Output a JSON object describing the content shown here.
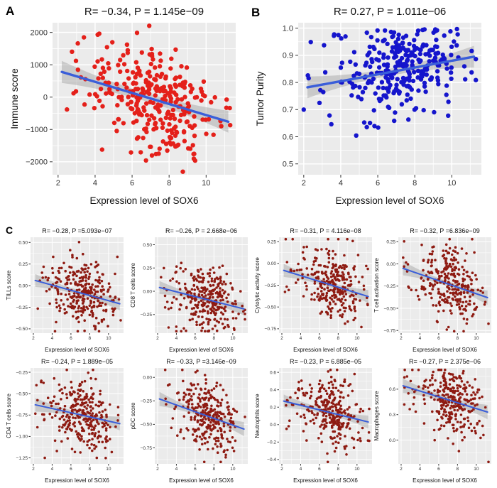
{
  "figure": {
    "labels": {
      "a": "A",
      "b": "B",
      "c": "C"
    }
  },
  "style": {
    "panel_bg": "#ebebeb",
    "grid_color": "#ffffff",
    "trend_color": "#3a5ed9",
    "band_color": "#9a9a9a",
    "axis_text_color": "#303030",
    "title_color": "#111111",
    "red_dot": "#e4201a",
    "blue_dot": "#1515cc",
    "darkred_dot": "#8e1b12"
  },
  "chart_data": [
    {
      "id": "A",
      "type": "scatter",
      "size": "large",
      "title": "R= −0.34, P = 1.145e−09",
      "r": -0.34,
      "p": "1.145e-09",
      "xlabel": "Expression level of SOX6",
      "ylabel": "Immune score",
      "xlim": [
        1.7,
        11.6
      ],
      "ylim": [
        -2400,
        2300
      ],
      "xticks": [
        2,
        4,
        6,
        8,
        10
      ],
      "xtick_labels": [
        "2",
        "4",
        "6",
        "8",
        "10"
      ],
      "yticks": [
        2000,
        1000,
        0,
        -1000,
        -2000
      ],
      "ytick_labels": [
        "2000",
        "1000",
        "0",
        "−1000",
        "−2000"
      ],
      "dot_color": "#e4201a",
      "n": 310,
      "seed": 101,
      "trend": {
        "x1": 2.2,
        "y1": 780,
        "x2": 11.2,
        "y2": -760
      },
      "noise_sd": 850,
      "band": {
        "mid": 130,
        "end": 340
      }
    },
    {
      "id": "B",
      "type": "scatter",
      "size": "large",
      "title": "R= 0.27, P = 1.011e−06",
      "r": 0.27,
      "p": "1.011e-06",
      "xlabel": "Expression level of SOX6",
      "ylabel": "Tumor Purity",
      "xlim": [
        1.7,
        11.6
      ],
      "ylim": [
        0.46,
        1.02
      ],
      "xticks": [
        2,
        4,
        6,
        8,
        10
      ],
      "xtick_labels": [
        "2",
        "4",
        "6",
        "8",
        "10"
      ],
      "yticks": [
        1.0,
        0.9,
        0.8,
        0.7,
        0.6,
        0.5
      ],
      "ytick_labels": [
        "1.0",
        "0.9",
        "0.8",
        "0.7",
        "0.6",
        "0.5"
      ],
      "dot_color": "#1515cc",
      "n": 300,
      "seed": 102,
      "trend": {
        "x1": 2.2,
        "y1": 0.782,
        "x2": 11.2,
        "y2": 0.895
      },
      "noise_sd": 0.085,
      "y_cap": 1.0,
      "band": {
        "mid": 0.013,
        "end": 0.04
      }
    },
    {
      "id": "C1",
      "type": "scatter",
      "size": "small",
      "title": "R= −0.28, P =5.093e−07",
      "r": -0.28,
      "p": "5.093e-07",
      "xlabel": "Expression level of SOX6",
      "ylabel": "TILLs score",
      "xlim": [
        1.7,
        11.6
      ],
      "ylim": [
        -0.55,
        0.56
      ],
      "xticks": [
        2,
        4,
        6,
        8,
        10
      ],
      "xtick_labels": [
        "2",
        "4",
        "6",
        "8",
        "10"
      ],
      "yticks": [
        0.5,
        0.25,
        0,
        -0.25,
        -0.5
      ],
      "ytick_labels": [
        "0.50",
        "0.25",
        "0.00",
        "−0.25",
        "−0.50"
      ],
      "dot_color": "#8e1b12",
      "n": 300,
      "seed": 103,
      "trend": {
        "x1": 2.2,
        "y1": 0.06,
        "x2": 11.2,
        "y2": -0.21
      },
      "noise_sd": 0.185,
      "band": {
        "mid": 0.028,
        "end": 0.075
      }
    },
    {
      "id": "C2",
      "type": "scatter",
      "size": "small",
      "title": "R= −0.26, P = 2.668e−06",
      "r": -0.26,
      "p": "2.668e-06",
      "xlabel": "Expression level of SOX6",
      "ylabel": "CD8 T cells score",
      "xlim": [
        1.7,
        11.6
      ],
      "ylim": [
        -0.45,
        0.58
      ],
      "xticks": [
        2,
        4,
        6,
        8,
        10
      ],
      "xtick_labels": [
        "2",
        "4",
        "6",
        "8",
        "10"
      ],
      "yticks": [
        0.5,
        0.25,
        0,
        -0.25
      ],
      "ytick_labels": [
        "0.50",
        "0.25",
        "0.00",
        "−0.25"
      ],
      "dot_color": "#8e1b12",
      "n": 300,
      "seed": 104,
      "trend": {
        "x1": 2.2,
        "y1": 0.04,
        "x2": 11.2,
        "y2": -0.19
      },
      "noise_sd": 0.165,
      "band": {
        "mid": 0.026,
        "end": 0.07
      }
    },
    {
      "id": "C3",
      "type": "scatter",
      "size": "small",
      "title": "R= −0.31, P = 4.116e−08",
      "r": -0.31,
      "p": "4.116e-08",
      "xlabel": "Expression level of SOX6",
      "ylabel": "Cytolytic activity score",
      "xlim": [
        1.7,
        11.6
      ],
      "ylim": [
        -0.8,
        0.3
      ],
      "xticks": [
        2,
        4,
        6,
        8,
        10
      ],
      "xtick_labels": [
        "2",
        "4",
        "6",
        "8",
        "10"
      ],
      "yticks": [
        0.25,
        0,
        -0.25,
        -0.5,
        -0.75
      ],
      "ytick_labels": [
        "0.25",
        "0.00",
        "−0.25",
        "−0.50",
        "−0.75"
      ],
      "dot_color": "#8e1b12",
      "n": 300,
      "seed": 105,
      "trend": {
        "x1": 2.2,
        "y1": -0.08,
        "x2": 11.2,
        "y2": -0.38
      },
      "noise_sd": 0.195,
      "band": {
        "mid": 0.028,
        "end": 0.075
      }
    },
    {
      "id": "C4",
      "type": "scatter",
      "size": "small",
      "title": "R= −0.32, P =6.836e−09",
      "r": -0.32,
      "p": "6.836e-09",
      "xlabel": "Expression level of SOX6",
      "ylabel": "T cell activation score",
      "xlim": [
        1.7,
        11.6
      ],
      "ylim": [
        -0.78,
        0.3
      ],
      "xticks": [
        2,
        4,
        6,
        8,
        10
      ],
      "xtick_labels": [
        "2",
        "4",
        "6",
        "8",
        "10"
      ],
      "yticks": [
        0.25,
        0,
        -0.25,
        -0.5,
        -0.75
      ],
      "ytick_labels": [
        "0.25",
        "0.00",
        "−0.25",
        "−0.50",
        "−0.75"
      ],
      "dot_color": "#8e1b12",
      "n": 300,
      "seed": 106,
      "trend": {
        "x1": 2.2,
        "y1": -0.05,
        "x2": 11.2,
        "y2": -0.38
      },
      "noise_sd": 0.195,
      "band": {
        "mid": 0.028,
        "end": 0.08
      }
    },
    {
      "id": "C5",
      "type": "scatter",
      "size": "small",
      "title": "R= −0.24, P = 1.889e−05",
      "r": -0.24,
      "p": "1.889e-05",
      "xlabel": "Expression level of SOX6",
      "ylabel": "CD4 T cells score",
      "xlim": [
        1.7,
        11.6
      ],
      "ylim": [
        -1.32,
        -0.2
      ],
      "xticks": [
        2,
        4,
        6,
        8,
        10
      ],
      "xtick_labels": [
        "2",
        "4",
        "6",
        "8",
        "10"
      ],
      "yticks": [
        -0.25,
        -0.5,
        -0.75,
        -1.0,
        -1.25
      ],
      "ytick_labels": [
        "−0.25",
        "−0.50",
        "−0.75",
        "−1.00",
        "−1.25"
      ],
      "dot_color": "#8e1b12",
      "n": 300,
      "seed": 107,
      "trend": {
        "x1": 2.2,
        "y1": -0.63,
        "x2": 11.2,
        "y2": -0.85
      },
      "noise_sd": 0.21,
      "band": {
        "mid": 0.03,
        "end": 0.08
      }
    },
    {
      "id": "C6",
      "type": "scatter",
      "size": "small",
      "title": "R= −0.33, P =3.146e−09",
      "r": -0.33,
      "p": "3.146e-09",
      "xlabel": "Expression level of SOX6",
      "ylabel": "pDC score",
      "xlim": [
        1.7,
        11.6
      ],
      "ylim": [
        -0.92,
        0.1
      ],
      "xticks": [
        2,
        4,
        6,
        8,
        10
      ],
      "xtick_labels": [
        "2",
        "4",
        "6",
        "8",
        "10"
      ],
      "yticks": [
        0,
        -0.25,
        -0.5,
        -0.75
      ],
      "ytick_labels": [
        "0.00",
        "−0.25",
        "−0.50",
        "−0.75"
      ],
      "dot_color": "#8e1b12",
      "n": 300,
      "seed": 108,
      "trend": {
        "x1": 2.2,
        "y1": -0.23,
        "x2": 11.2,
        "y2": -0.55
      },
      "noise_sd": 0.185,
      "band": {
        "mid": 0.028,
        "end": 0.075
      }
    },
    {
      "id": "C7",
      "type": "scatter",
      "size": "small",
      "title": "R= −0.23, P = 6.885e−05",
      "r": -0.23,
      "p": "6.885e-05",
      "xlabel": "Expression level of SOX6",
      "ylabel": "Neutrophils score",
      "xlim": [
        1.7,
        11.6
      ],
      "ylim": [
        -0.45,
        0.65
      ],
      "xticks": [
        2,
        4,
        6,
        8,
        10
      ],
      "xtick_labels": [
        "2",
        "4",
        "6",
        "8",
        "10"
      ],
      "yticks": [
        0.6,
        0.4,
        0.2,
        0,
        -0.2,
        -0.4
      ],
      "ytick_labels": [
        "0.6",
        "0.4",
        "0.2",
        "0.0",
        "−0.2",
        "−0.4"
      ],
      "dot_color": "#8e1b12",
      "n": 300,
      "seed": 109,
      "trend": {
        "x1": 2.2,
        "y1": 0.27,
        "x2": 11.2,
        "y2": 0.03
      },
      "noise_sd": 0.19,
      "band": {
        "mid": 0.028,
        "end": 0.075
      }
    },
    {
      "id": "C8",
      "type": "scatter",
      "size": "small",
      "title": "R= −0.27, P = 2.375e−06",
      "r": -0.27,
      "p": "2.375e-06",
      "xlabel": "Expression level of SOX6",
      "ylabel": "Macrophages score",
      "xlim": [
        1.7,
        11.6
      ],
      "ylim": [
        -0.28,
        0.85
      ],
      "xticks": [
        2,
        4,
        6,
        8,
        10
      ],
      "xtick_labels": [
        "2",
        "4",
        "6",
        "8",
        "10"
      ],
      "yticks": [
        0.6,
        0.3,
        0
      ],
      "ytick_labels": [
        "0.6",
        "0.3",
        "0.0"
      ],
      "dot_color": "#8e1b12",
      "n": 300,
      "seed": 110,
      "trend": {
        "x1": 2.2,
        "y1": 0.64,
        "x2": 11.2,
        "y2": 0.33
      },
      "noise_sd": 0.21,
      "band": {
        "mid": 0.032,
        "end": 0.085
      }
    }
  ]
}
